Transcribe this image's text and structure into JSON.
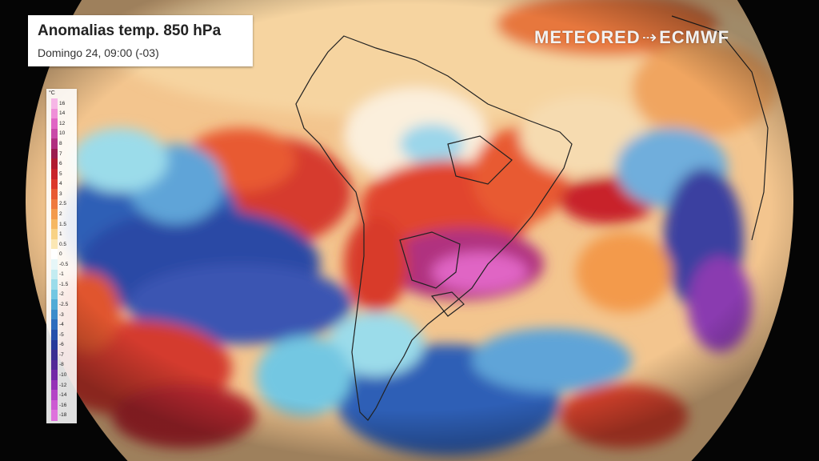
{
  "title": "Anomalias temp. 850 hPa",
  "subtitle": "Domingo 24, 09:00 (-03)",
  "brand": {
    "left": "METEORED",
    "right": "ECMWF"
  },
  "legend": {
    "unit": "°C",
    "entries": [
      {
        "label": "16",
        "color": "#f6b6e6"
      },
      {
        "label": "14",
        "color": "#ef8fd8"
      },
      {
        "label": "12",
        "color": "#e065c4"
      },
      {
        "label": "10",
        "color": "#c94aa8"
      },
      {
        "label": "8",
        "color": "#b0307f"
      },
      {
        "label": "7",
        "color": "#9b1d4e"
      },
      {
        "label": "6",
        "color": "#b01c30"
      },
      {
        "label": "5",
        "color": "#c8242a"
      },
      {
        "label": "4",
        "color": "#dc3a2c"
      },
      {
        "label": "3",
        "color": "#e85a33"
      },
      {
        "label": "2.5",
        "color": "#ef7a3e"
      },
      {
        "label": "2",
        "color": "#f39a4c"
      },
      {
        "label": "1.5",
        "color": "#f6b862"
      },
      {
        "label": "1",
        "color": "#f8d286"
      },
      {
        "label": "0.5",
        "color": "#fbe7b4"
      },
      {
        "label": "0",
        "color": "#ffffff"
      },
      {
        "label": "-0.5",
        "color": "#e6f6f8"
      },
      {
        "label": "-1",
        "color": "#c3ecf1"
      },
      {
        "label": "-1.5",
        "color": "#9bdcea"
      },
      {
        "label": "-2",
        "color": "#73c7e2"
      },
      {
        "label": "-2.5",
        "color": "#50abd6"
      },
      {
        "label": "-3",
        "color": "#3a8ccb"
      },
      {
        "label": "-4",
        "color": "#2d6dbd"
      },
      {
        "label": "-5",
        "color": "#2650ab"
      },
      {
        "label": "-6",
        "color": "#273a9a"
      },
      {
        "label": "-7",
        "color": "#3a2f92"
      },
      {
        "label": "-8",
        "color": "#542a98"
      },
      {
        "label": "-10",
        "color": "#7328a6"
      },
      {
        "label": "-12",
        "color": "#9531b6"
      },
      {
        "label": "-14",
        "color": "#b444c6"
      },
      {
        "label": "-16",
        "color": "#cc5ad2"
      },
      {
        "label": "-18",
        "color": "#de72dc"
      }
    ]
  }
}
